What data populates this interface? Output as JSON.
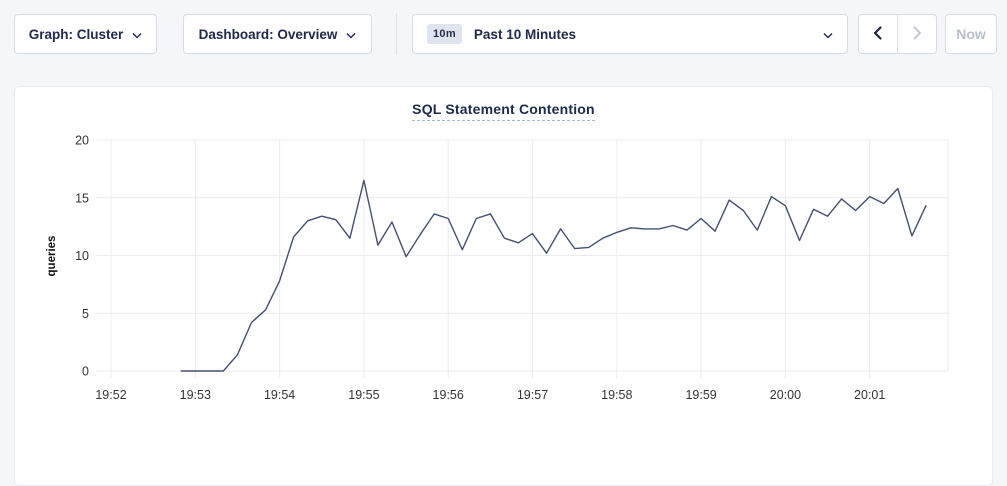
{
  "toolbar": {
    "graph_dropdown": {
      "label": "Graph: Cluster"
    },
    "dashboard_dropdown": {
      "label": "Dashboard: Overview"
    },
    "time_window": {
      "badge": "10m",
      "label": "Past 10 Minutes"
    },
    "prev_button": {
      "disabled": false
    },
    "next_button": {
      "disabled": true
    },
    "now_button": {
      "label": "Now",
      "disabled": true
    },
    "icons": {
      "dropdown": "chevron-down",
      "prev": "chevron-left",
      "next": "chevron-right"
    }
  },
  "chart_data": {
    "type": "line",
    "title": "SQL Statement Contention",
    "xlabel": "",
    "ylabel": "queries",
    "ylim": [
      0,
      20
    ],
    "yticks": [
      0,
      5,
      10,
      15,
      20
    ],
    "x_tick_labels": [
      "19:52",
      "19:53",
      "19:54",
      "19:55",
      "19:56",
      "19:57",
      "19:58",
      "19:59",
      "20:00",
      "20:01"
    ],
    "x_tick_interval_sec": 60,
    "grid": true,
    "legend": false,
    "line_color": "#44506e",
    "series": [
      {
        "name": "queries",
        "start_offset_sec": 50,
        "interval_sec": 10,
        "values": [
          0,
          0,
          0,
          0,
          1.4,
          4.2,
          5.3,
          7.8,
          11.6,
          13,
          13.4,
          13.1,
          11.5,
          16.5,
          10.9,
          12.9,
          9.9,
          11.8,
          13.6,
          13.2,
          10.5,
          13.2,
          13.6,
          11.5,
          11.1,
          11.9,
          10.2,
          12.3,
          10.6,
          10.7,
          11.5,
          12,
          12.4,
          12.3,
          12.3,
          12.6,
          12.2,
          13.2,
          12.1,
          14.8,
          13.9,
          12.2,
          15.1,
          14.3,
          11.3,
          14,
          13.4,
          14.9,
          13.9,
          15.1,
          14.5,
          15.8,
          11.7,
          14.3
        ]
      }
    ]
  },
  "colors": {
    "page_bg": "#f4f6fa",
    "card_border": "#e8ebf2",
    "control_border": "#d6dbe6",
    "accent_text": "#20294a",
    "disabled_text": "#b9c0cd",
    "badge_bg": "#e0e4ee",
    "title_text": "#1c2b4a",
    "title_underline": "#a9b7d4",
    "grid_line": "#ececf0",
    "tick_text": "#333333",
    "axis_label_text": "#111111"
  }
}
